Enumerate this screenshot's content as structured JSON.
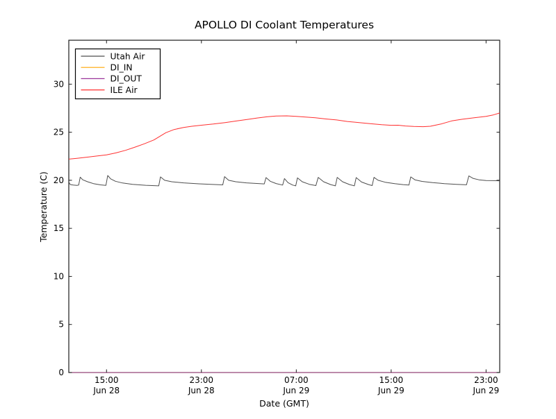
{
  "figure": {
    "background": "#ffffff",
    "frame_color": "#1a1a1a",
    "tick_color": "#1a1a1a",
    "text_color": "#000000"
  },
  "chart_data": {
    "type": "line",
    "title": "APOLLO DI Coolant Temperatures",
    "xlabel": "Date (GMT)",
    "ylabel": "Temperature (C)",
    "x_unit": "hours since Jun 28 00:00 GMT",
    "xlim": [
      11.82,
      48.15
    ],
    "ylim": [
      0,
      34.57
    ],
    "grid": false,
    "legend_position": "upper left",
    "yticks": [
      {
        "value": 0,
        "label": "0"
      },
      {
        "value": 5,
        "label": "5"
      },
      {
        "value": 10,
        "label": "10"
      },
      {
        "value": 15,
        "label": "15"
      },
      {
        "value": 20,
        "label": "20"
      },
      {
        "value": 25,
        "label": "25"
      },
      {
        "value": 30,
        "label": "30"
      }
    ],
    "xticks": [
      {
        "value": 15,
        "time": "15:00",
        "date": "Jun 28"
      },
      {
        "value": 23,
        "time": "23:00",
        "date": "Jun 28"
      },
      {
        "value": 31,
        "time": "07:00",
        "date": "Jun 29"
      },
      {
        "value": 39,
        "time": "15:00",
        "date": "Jun 29"
      },
      {
        "value": 47,
        "time": "23:00",
        "date": "Jun 29"
      }
    ],
    "series": [
      {
        "name": "Utah Air",
        "color": "#4d4d4d",
        "opacity": 1,
        "points": [
          [
            11.82,
            19.82
          ],
          [
            11.95,
            19.55
          ],
          [
            12.2,
            19.5
          ],
          [
            12.5,
            19.47
          ],
          [
            12.65,
            19.5
          ],
          [
            12.78,
            20.32
          ],
          [
            13.0,
            20.05
          ],
          [
            13.4,
            19.85
          ],
          [
            13.9,
            19.65
          ],
          [
            14.5,
            19.52
          ],
          [
            14.95,
            19.47
          ],
          [
            15.1,
            20.5
          ],
          [
            15.35,
            20.15
          ],
          [
            15.75,
            19.9
          ],
          [
            16.35,
            19.72
          ],
          [
            17.2,
            19.58
          ],
          [
            18.3,
            19.48
          ],
          [
            19.4,
            19.42
          ],
          [
            19.55,
            20.35
          ],
          [
            19.9,
            20.0
          ],
          [
            20.5,
            19.85
          ],
          [
            21.5,
            19.73
          ],
          [
            22.8,
            19.63
          ],
          [
            24.3,
            19.55
          ],
          [
            24.8,
            19.52
          ],
          [
            24.95,
            20.38
          ],
          [
            25.3,
            20.0
          ],
          [
            25.9,
            19.85
          ],
          [
            26.8,
            19.73
          ],
          [
            27.8,
            19.66
          ],
          [
            28.3,
            19.62
          ],
          [
            28.45,
            20.28
          ],
          [
            28.8,
            19.9
          ],
          [
            29.3,
            19.66
          ],
          [
            29.85,
            19.5
          ],
          [
            30.0,
            20.18
          ],
          [
            30.3,
            19.75
          ],
          [
            30.7,
            19.5
          ],
          [
            30.95,
            19.42
          ],
          [
            31.1,
            20.25
          ],
          [
            31.5,
            19.85
          ],
          [
            32.1,
            19.58
          ],
          [
            32.65,
            19.45
          ],
          [
            32.85,
            20.3
          ],
          [
            33.3,
            19.85
          ],
          [
            33.9,
            19.55
          ],
          [
            34.3,
            19.42
          ],
          [
            34.45,
            20.3
          ],
          [
            34.9,
            19.85
          ],
          [
            35.5,
            19.55
          ],
          [
            35.9,
            19.42
          ],
          [
            36.05,
            20.28
          ],
          [
            36.5,
            19.82
          ],
          [
            37.1,
            19.55
          ],
          [
            37.4,
            19.45
          ],
          [
            37.55,
            20.3
          ],
          [
            37.9,
            20.0
          ],
          [
            38.5,
            19.8
          ],
          [
            39.3,
            19.65
          ],
          [
            40.0,
            19.55
          ],
          [
            40.5,
            19.5
          ],
          [
            40.65,
            20.35
          ],
          [
            41.0,
            20.05
          ],
          [
            41.6,
            19.88
          ],
          [
            42.5,
            19.75
          ],
          [
            43.5,
            19.65
          ],
          [
            44.5,
            19.58
          ],
          [
            45.35,
            19.53
          ],
          [
            45.55,
            20.45
          ],
          [
            45.9,
            20.2
          ],
          [
            46.4,
            20.05
          ],
          [
            47.0,
            19.98
          ],
          [
            47.6,
            19.96
          ],
          [
            48.15,
            19.95
          ]
        ]
      },
      {
        "name": "DI_IN",
        "color": "#ffa500",
        "opacity": 1,
        "points": [
          [
            11.82,
            0
          ],
          [
            48.15,
            0
          ]
        ]
      },
      {
        "name": "DI_OUT",
        "color": "#993399",
        "opacity": 0.85,
        "points": [
          [
            11.82,
            0
          ],
          [
            48.15,
            0
          ]
        ]
      },
      {
        "name": "ILE Air",
        "color": "#ff2f2f",
        "opacity": 1,
        "points": [
          [
            11.82,
            22.2
          ],
          [
            12.5,
            22.28
          ],
          [
            13.2,
            22.38
          ],
          [
            14.0,
            22.5
          ],
          [
            15.0,
            22.65
          ],
          [
            15.8,
            22.85
          ],
          [
            16.6,
            23.12
          ],
          [
            17.4,
            23.45
          ],
          [
            18.2,
            23.8
          ],
          [
            19.0,
            24.2
          ],
          [
            20.0,
            24.95
          ],
          [
            20.7,
            25.28
          ],
          [
            21.5,
            25.5
          ],
          [
            22.2,
            25.62
          ],
          [
            23.0,
            25.73
          ],
          [
            24.0,
            25.85
          ],
          [
            25.0,
            26.0
          ],
          [
            26.0,
            26.18
          ],
          [
            27.0,
            26.35
          ],
          [
            27.7,
            26.48
          ],
          [
            28.5,
            26.6
          ],
          [
            29.3,
            26.68
          ],
          [
            30.2,
            26.7
          ],
          [
            31.0,
            26.65
          ],
          [
            31.8,
            26.58
          ],
          [
            32.6,
            26.5
          ],
          [
            33.5,
            26.38
          ],
          [
            34.4,
            26.28
          ],
          [
            35.3,
            26.12
          ],
          [
            36.3,
            26.0
          ],
          [
            37.3,
            25.88
          ],
          [
            38.2,
            25.78
          ],
          [
            39.0,
            25.72
          ],
          [
            39.6,
            25.73
          ],
          [
            40.2,
            25.65
          ],
          [
            40.9,
            25.6
          ],
          [
            41.7,
            25.58
          ],
          [
            42.3,
            25.62
          ],
          [
            43.2,
            25.85
          ],
          [
            44.1,
            26.18
          ],
          [
            45.0,
            26.35
          ],
          [
            46.0,
            26.5
          ],
          [
            47.0,
            26.65
          ],
          [
            47.6,
            26.8
          ],
          [
            48.15,
            27.0
          ]
        ]
      }
    ]
  }
}
